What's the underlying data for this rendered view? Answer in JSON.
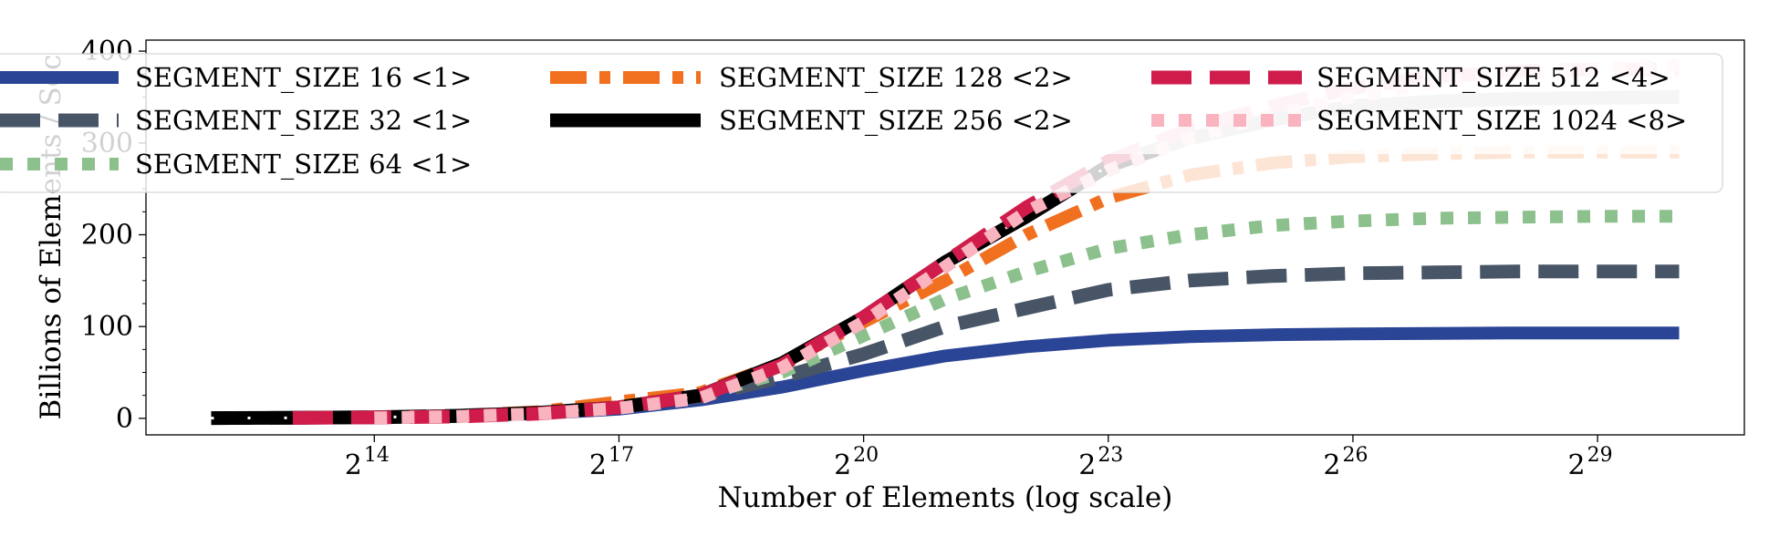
{
  "chart_data": {
    "type": "line",
    "xlabel": "Number of Elements (log scale)",
    "ylabel": "Billions of Elements / Sec",
    "x_scale": "log2",
    "xlim_exponent": [
      11.2,
      30.8
    ],
    "ylim": [
      -18,
      412
    ],
    "x_ticks": [
      {
        "base": "2",
        "exp": "14",
        "value": 14
      },
      {
        "base": "2",
        "exp": "17",
        "value": 17
      },
      {
        "base": "2",
        "exp": "20",
        "value": 20
      },
      {
        "base": "2",
        "exp": "23",
        "value": 23
      },
      {
        "base": "2",
        "exp": "26",
        "value": 26
      },
      {
        "base": "2",
        "exp": "29",
        "value": 29
      }
    ],
    "y_ticks": [
      {
        "label": "0",
        "value": 0
      },
      {
        "label": "100",
        "value": 100
      },
      {
        "label": "200",
        "value": 200
      },
      {
        "label": "300",
        "value": 300
      },
      {
        "label": "400",
        "value": 400
      }
    ],
    "grid": false,
    "legend": {
      "position": "top",
      "columns": 3
    },
    "series": [
      {
        "name": "SEGMENT_SIZE 16 <1>",
        "color": "#2b4596",
        "style": "solid",
        "x": [
          12,
          13,
          14,
          15,
          16,
          17,
          18,
          19,
          20,
          21,
          22,
          23,
          24,
          25,
          26,
          27,
          28,
          29,
          30
        ],
        "y": [
          0.3,
          0.6,
          1.3,
          2.5,
          5,
          10,
          20,
          34,
          52,
          68,
          78,
          85,
          89,
          91,
          92,
          92.5,
          93,
          93,
          93
        ]
      },
      {
        "name": "SEGMENT_SIZE 32 <1>",
        "color": "#485566",
        "style": "dash",
        "x": [
          12,
          13,
          14,
          15,
          16,
          17,
          18,
          19,
          20,
          21,
          22,
          23,
          24,
          25,
          26,
          27,
          28,
          29,
          30
        ],
        "y": [
          0.3,
          0.6,
          1.3,
          3,
          6,
          12,
          24,
          45,
          70,
          100,
          120,
          140,
          150,
          155,
          158,
          159,
          160,
          160,
          160
        ]
      },
      {
        "name": "SEGMENT_SIZE 64 <1>",
        "color": "#8cc08c",
        "style": "dot",
        "x": [
          12,
          13,
          14,
          15,
          16,
          17,
          18,
          19,
          20,
          21,
          22,
          23,
          24,
          25,
          26,
          27,
          28,
          29,
          30
        ],
        "y": [
          0.3,
          0.7,
          1.5,
          3,
          6,
          12,
          25,
          50,
          90,
          130,
          160,
          185,
          200,
          210,
          215,
          218,
          219,
          220,
          220
        ]
      },
      {
        "name": "SEGMENT_SIZE 128 <2>",
        "color": "#f07020",
        "style": "dashdot",
        "light_color": "#fde0cc",
        "x": [
          12,
          13,
          14,
          15,
          16,
          17,
          18,
          19,
          20,
          21,
          22,
          23,
          24,
          25,
          26,
          27,
          28,
          29,
          30
        ],
        "y": [
          0.4,
          0.8,
          1.5,
          3,
          7,
          18,
          28,
          60,
          105,
          150,
          200,
          240,
          265,
          278,
          285,
          288,
          290,
          290,
          290
        ]
      },
      {
        "name": "SEGMENT_SIZE 256 <2>",
        "color": "#000000",
        "style": "solid-dash",
        "light_color": "#c8c8c8",
        "x": [
          12,
          13,
          14,
          15,
          16,
          17,
          18,
          19,
          20,
          21,
          22,
          23,
          24,
          25,
          26,
          27,
          28,
          29,
          30
        ],
        "y": [
          0.3,
          0.6,
          1.2,
          2.5,
          6,
          12,
          25,
          60,
          110,
          170,
          220,
          275,
          305,
          325,
          340,
          345,
          348,
          349,
          350
        ]
      },
      {
        "name": "SEGMENT_SIZE 512 <4>",
        "color": "#d01c4a",
        "style": "dash",
        "light_color": "#f7c4cf",
        "x": [
          13,
          14,
          15,
          16,
          17,
          18,
          19,
          20,
          21,
          22,
          23,
          24,
          25,
          26,
          27,
          28,
          29,
          30
        ],
        "y": [
          0.5,
          1,
          2,
          5,
          12,
          25,
          58,
          110,
          170,
          230,
          280,
          315,
          340,
          360,
          372,
          378,
          380,
          380
        ]
      },
      {
        "name": "SEGMENT_SIZE 1024 <8>",
        "color": "#f9b4c0",
        "style": "dot",
        "light_color": "#fcdce2",
        "x": [
          14,
          15,
          16,
          17,
          18,
          19,
          20,
          21,
          22,
          23,
          24,
          25,
          26,
          27,
          28,
          29,
          30
        ],
        "y": [
          0.6,
          2,
          5,
          11,
          22,
          55,
          105,
          165,
          225,
          270,
          305,
          330,
          350,
          365,
          375,
          380,
          385
        ]
      }
    ]
  }
}
